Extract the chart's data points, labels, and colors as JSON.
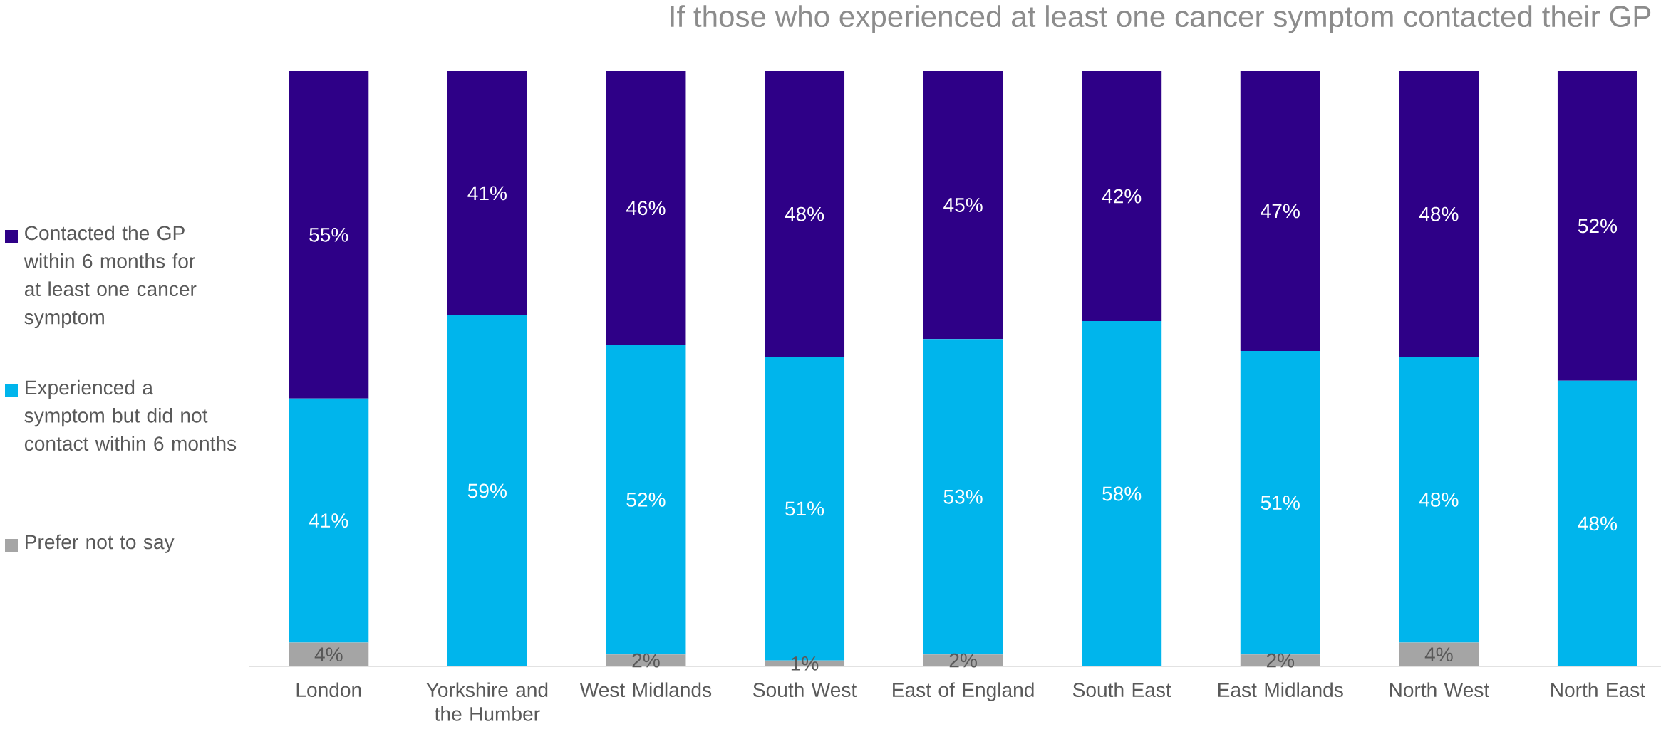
{
  "chart_data": {
    "type": "bar",
    "stacked": true,
    "title": "If those who experienced at least one cancer symptom contacted their GP",
    "categories": [
      "London",
      "Yorkshire and the Humber",
      "West Midlands",
      "South West",
      "East of England",
      "South East",
      "East Midlands",
      "North West",
      "North East"
    ],
    "ylim": [
      0,
      100
    ],
    "legend": "left",
    "series": [
      {
        "name": "Prefer not to say",
        "color": "#a5a5a5",
        "values": [
          4,
          0,
          2,
          1,
          2,
          0,
          2,
          4,
          0
        ],
        "value_labels": [
          "4%",
          null,
          "2%",
          "1%",
          "2%",
          null,
          "2%",
          "4%",
          null
        ]
      },
      {
        "name": "Experienced a symptom but did not contact within 6 months",
        "color": "#00b5ec",
        "values": [
          41,
          59,
          52,
          51,
          53,
          58,
          51,
          48,
          48
        ],
        "value_labels": [
          "41%",
          "59%",
          "52%",
          "51%",
          "53%",
          "58%",
          "51%",
          "48%",
          "48%"
        ]
      },
      {
        "name": "Contacted the GP within 6 months for at least one cancer symptom",
        "color": "#2e0087",
        "values": [
          55,
          41,
          46,
          48,
          45,
          42,
          47,
          48,
          52
        ],
        "value_labels": [
          "55%",
          "41%",
          "46%",
          "48%",
          "45%",
          "42%",
          "47%",
          "48%",
          "52%"
        ]
      }
    ]
  }
}
